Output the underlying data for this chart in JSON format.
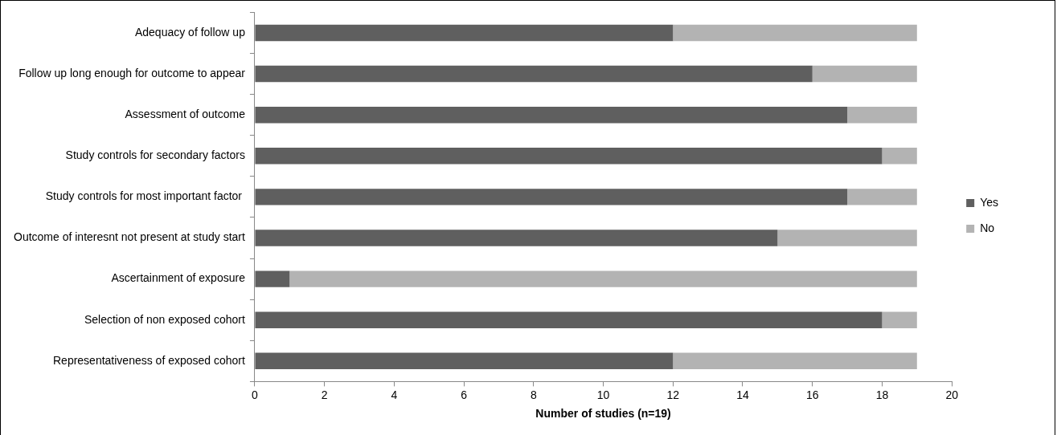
{
  "chart_data": {
    "type": "bar",
    "orientation": "horizontal",
    "stacked": true,
    "xlabel": "Number of studies (n=19)",
    "categories": [
      "Adequacy of follow up",
      "Follow up long enough for outcome to appear",
      "Assessment of outcome",
      "Study controls for secondary factors",
      "Study controls for most important factor ",
      "Outcome of interesnt not present at study start",
      "Ascertainment of exposure",
      "Selection of non exposed cohort",
      "Representativeness of exposed cohort"
    ],
    "series": [
      {
        "name": "Yes",
        "color": "#5f5f5f",
        "values": [
          12,
          16,
          17,
          18,
          17,
          15,
          1,
          18,
          12
        ]
      },
      {
        "name": "No",
        "color": "#b3b3b3",
        "values": [
          7,
          3,
          2,
          1,
          2,
          4,
          18,
          1,
          7
        ]
      }
    ],
    "xlim": [
      0,
      20
    ],
    "xticks": [
      0,
      2,
      4,
      6,
      8,
      10,
      12,
      14,
      16,
      18,
      20
    ],
    "grid": false,
    "legend": "right"
  }
}
